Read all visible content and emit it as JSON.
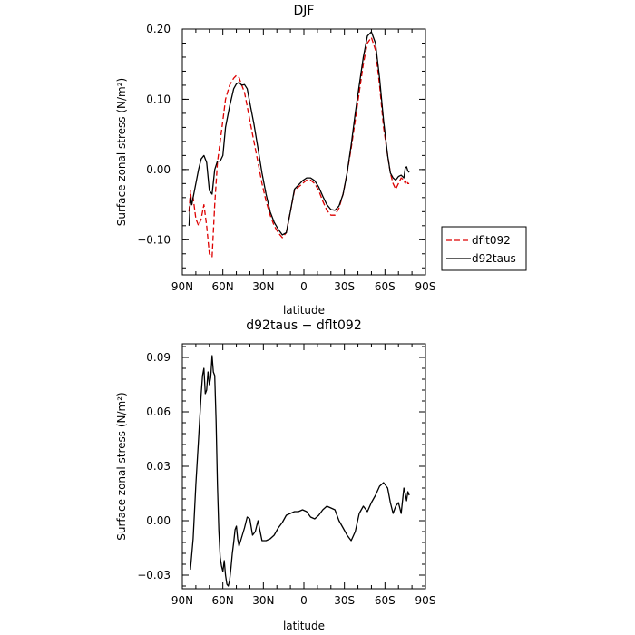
{
  "chart_data": [
    {
      "type": "line",
      "title": "DJF",
      "xlabel": "latitude",
      "ylabel": "Surface zonal stress (N/m²)",
      "xlim": [
        90,
        -90
      ],
      "ylim": [
        -0.15,
        0.2
      ],
      "x_ticks": [
        90,
        60,
        30,
        0,
        -30,
        -60,
        -90
      ],
      "x_tick_labels": [
        "90N",
        "60N",
        "30N",
        "0",
        "30S",
        "60S",
        "90S"
      ],
      "y_ticks": [
        -0.1,
        0.0,
        0.1,
        0.2
      ],
      "y_tick_labels": [
        "−0.10",
        "0.00",
        "0.10",
        "0.20"
      ],
      "grid": false,
      "legend_position": "right",
      "series": [
        {
          "name": "dflt092",
          "color": "#dd0000",
          "dash": "dashed",
          "x": [
            85,
            84,
            83,
            82,
            80,
            78,
            76,
            74,
            72,
            70,
            68,
            66,
            64,
            62,
            60,
            58,
            55,
            52,
            50,
            48,
            46,
            44,
            42,
            40,
            37,
            34,
            31,
            28,
            25,
            22,
            19,
            16,
            13,
            10,
            7,
            4,
            1,
            -2,
            -5,
            -8,
            -11,
            -14,
            -17,
            -20,
            -23,
            -26,
            -29,
            -32,
            -35,
            -38,
            -41,
            -44,
            -47,
            -50,
            -53,
            -56,
            -59,
            -62,
            -64,
            -66,
            -68,
            -70,
            -72,
            -74,
            -75,
            -76,
            -77,
            -78
          ],
          "y": [
            -0.06,
            -0.03,
            -0.05,
            -0.04,
            -0.07,
            -0.08,
            -0.07,
            -0.05,
            -0.08,
            -0.12,
            -0.125,
            -0.05,
            0.01,
            0.04,
            0.07,
            0.1,
            0.12,
            0.13,
            0.134,
            0.131,
            0.12,
            0.11,
            0.09,
            0.07,
            0.04,
            0.01,
            -0.02,
            -0.045,
            -0.065,
            -0.08,
            -0.09,
            -0.097,
            -0.09,
            -0.06,
            -0.03,
            -0.025,
            -0.02,
            -0.015,
            -0.015,
            -0.02,
            -0.03,
            -0.045,
            -0.058,
            -0.065,
            -0.065,
            -0.055,
            -0.035,
            -0.005,
            0.03,
            0.07,
            0.11,
            0.15,
            0.18,
            0.188,
            0.17,
            0.12,
            0.06,
            0.02,
            -0.005,
            -0.02,
            -0.028,
            -0.02,
            -0.012,
            -0.015,
            -0.02,
            -0.015,
            -0.02,
            -0.02
          ]
        },
        {
          "name": "d92taus",
          "color": "#000000",
          "dash": "solid",
          "x": [
            85,
            84,
            83,
            82,
            80,
            78,
            76,
            74,
            72,
            70,
            68,
            66,
            64,
            62,
            60,
            58,
            55,
            52,
            50,
            48,
            46,
            44,
            42,
            40,
            37,
            34,
            31,
            28,
            25,
            22,
            19,
            16,
            13,
            10,
            7,
            4,
            1,
            -2,
            -5,
            -8,
            -11,
            -14,
            -17,
            -20,
            -23,
            -26,
            -29,
            -32,
            -35,
            -38,
            -41,
            -44,
            -47,
            -50,
            -53,
            -56,
            -59,
            -62,
            -64,
            -66,
            -68,
            -70,
            -72,
            -74,
            -75,
            -76,
            -77,
            -78
          ],
          "y": [
            -0.08,
            -0.04,
            -0.05,
            -0.04,
            -0.02,
            0.0,
            0.015,
            0.02,
            0.01,
            -0.03,
            -0.035,
            0.0,
            0.012,
            0.012,
            0.02,
            0.06,
            0.09,
            0.115,
            0.122,
            0.124,
            0.12,
            0.121,
            0.115,
            0.095,
            0.065,
            0.03,
            -0.005,
            -0.035,
            -0.06,
            -0.075,
            -0.085,
            -0.093,
            -0.09,
            -0.06,
            -0.028,
            -0.022,
            -0.016,
            -0.012,
            -0.012,
            -0.016,
            -0.025,
            -0.038,
            -0.05,
            -0.057,
            -0.058,
            -0.052,
            -0.035,
            -0.005,
            0.035,
            0.08,
            0.12,
            0.16,
            0.19,
            0.196,
            0.18,
            0.13,
            0.07,
            0.02,
            -0.005,
            -0.012,
            -0.015,
            -0.01,
            -0.008,
            -0.012,
            0.002,
            0.004,
            -0.002,
            -0.004
          ]
        }
      ]
    },
    {
      "type": "line",
      "title": "d92taus − dflt092",
      "xlabel": "latitude",
      "ylabel": "Surface zonal stress (N/m²)",
      "xlim": [
        90,
        -90
      ],
      "ylim": [
        -0.0375,
        0.0975
      ],
      "x_ticks": [
        90,
        60,
        30,
        0,
        -30,
        -60,
        -90
      ],
      "x_tick_labels": [
        "90N",
        "60N",
        "30N",
        "0",
        "30S",
        "60S",
        "90S"
      ],
      "y_ticks": [
        -0.03,
        0.0,
        0.03,
        0.06,
        0.09
      ],
      "y_tick_labels": [
        "−0.03",
        "0.00",
        "0.03",
        "0.06",
        "0.09"
      ],
      "grid": false,
      "series": [
        {
          "name": "",
          "color": "#000000",
          "dash": "solid",
          "x": [
            84,
            82,
            80,
            78,
            76,
            75,
            74,
            73,
            72,
            71,
            70,
            69,
            68,
            67,
            66,
            65,
            64,
            63,
            62,
            61,
            60,
            59,
            58,
            57,
            56,
            55,
            54,
            53,
            52,
            51,
            50,
            49,
            48,
            46,
            44,
            42,
            40,
            38,
            36,
            34,
            31,
            28,
            25,
            22,
            19,
            16,
            13,
            10,
            7,
            4,
            1,
            -2,
            -5,
            -8,
            -11,
            -14,
            -17,
            -20,
            -23,
            -26,
            -29,
            -32,
            -35,
            -38,
            -41,
            -44,
            -47,
            -50,
            -53,
            -56,
            -59,
            -62,
            -64,
            -66,
            -68,
            -70,
            -72,
            -74,
            -75,
            -76,
            -77,
            -78
          ],
          "y": [
            -0.027,
            -0.01,
            0.02,
            0.045,
            0.07,
            0.08,
            0.084,
            0.07,
            0.072,
            0.082,
            0.075,
            0.079,
            0.091,
            0.082,
            0.08,
            0.055,
            0.02,
            -0.005,
            -0.02,
            -0.025,
            -0.028,
            -0.022,
            -0.03,
            -0.035,
            -0.036,
            -0.033,
            -0.026,
            -0.018,
            -0.012,
            -0.005,
            -0.003,
            -0.01,
            -0.014,
            -0.009,
            -0.004,
            0.002,
            0.001,
            -0.008,
            -0.006,
            0.0,
            -0.011,
            -0.011,
            -0.01,
            -0.008,
            -0.004,
            -0.001,
            0.003,
            0.004,
            0.005,
            0.005,
            0.006,
            0.005,
            0.002,
            0.001,
            0.003,
            0.006,
            0.008,
            0.007,
            0.006,
            0.0,
            -0.004,
            -0.008,
            -0.011,
            -0.006,
            0.004,
            0.008,
            0.005,
            0.01,
            0.014,
            0.019,
            0.021,
            0.018,
            0.01,
            0.004,
            0.008,
            0.01,
            0.004,
            0.018,
            0.015,
            0.011,
            0.016,
            0.014
          ]
        }
      ]
    }
  ]
}
